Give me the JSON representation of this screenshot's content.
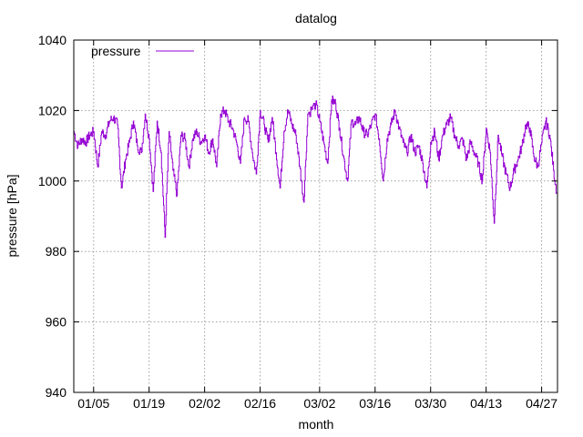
{
  "chart_data": {
    "type": "line",
    "title": "datalog",
    "xlabel": "month",
    "ylabel": "pressure [hPa]",
    "ylim": [
      940,
      1040
    ],
    "yticks": [
      940,
      960,
      980,
      1000,
      1020,
      1040
    ],
    "xlim": [
      "12/31",
      "05/01"
    ],
    "xtick_labels": [
      "01/05",
      "01/19",
      "02/02",
      "02/16",
      "03/02",
      "03/16",
      "03/30",
      "04/13",
      "04/27"
    ],
    "grid": true,
    "legend_position": "top-left",
    "series": [
      {
        "name": "pressure",
        "color": "#9400d3",
        "x": [
          "12/31",
          "01/01",
          "01/02",
          "01/03",
          "01/04",
          "01/05",
          "01/06",
          "01/07",
          "01/08",
          "01/09",
          "01/10",
          "01/11",
          "01/12",
          "01/13",
          "01/14",
          "01/15",
          "01/16",
          "01/17",
          "01/18",
          "01/19",
          "01/20",
          "01/21",
          "01/22",
          "01/23",
          "01/24",
          "01/25",
          "01/26",
          "01/27",
          "01/28",
          "01/29",
          "01/30",
          "01/31",
          "02/01",
          "02/02",
          "02/03",
          "02/04",
          "02/05",
          "02/06",
          "02/07",
          "02/08",
          "02/09",
          "02/10",
          "02/11",
          "02/12",
          "02/13",
          "02/14",
          "02/15",
          "02/16",
          "02/17",
          "02/18",
          "02/19",
          "02/20",
          "02/21",
          "02/22",
          "02/23",
          "02/24",
          "02/25",
          "02/26",
          "02/27",
          "02/28",
          "03/01",
          "03/02",
          "03/03",
          "03/04",
          "03/05",
          "03/06",
          "03/07",
          "03/08",
          "03/09",
          "03/10",
          "03/11",
          "03/12",
          "03/13",
          "03/14",
          "03/15",
          "03/16",
          "03/17",
          "03/18",
          "03/19",
          "03/20",
          "03/21",
          "03/22",
          "03/23",
          "03/24",
          "03/25",
          "03/26",
          "03/27",
          "03/28",
          "03/29",
          "03/30",
          "03/31",
          "04/01",
          "04/02",
          "04/03",
          "04/04",
          "04/05",
          "04/06",
          "04/07",
          "04/08",
          "04/09",
          "04/10",
          "04/11",
          "04/12",
          "04/13",
          "04/14",
          "04/15",
          "04/16",
          "04/17",
          "04/18",
          "04/19",
          "04/20",
          "04/21",
          "04/22",
          "04/23",
          "04/24",
          "04/25",
          "04/26",
          "04/27",
          "04/28",
          "04/29",
          "04/30",
          "05/01"
        ],
        "values": [
          1014,
          1010,
          1012,
          1011,
          1013,
          1014,
          1004,
          1014,
          1013,
          1017,
          1018,
          1016,
          998,
          1006,
          1011,
          1017,
          1010,
          1008,
          1019,
          1012,
          997,
          1017,
          1008,
          984,
          1014,
          1003,
          996,
          1013,
          1012,
          1004,
          1012,
          1014,
          1011,
          1013,
          1008,
          1012,
          1004,
          1019,
          1020,
          1017,
          1015,
          1011,
          1005,
          1018,
          1017,
          1008,
          1002,
          1020,
          1016,
          1011,
          1018,
          1008,
          998,
          1014,
          1020,
          1016,
          1013,
          1004,
          994,
          1019,
          1022,
          1017,
          1011,
          1005,
          1023,
          1022,
          1015,
          1007,
          1000,
          1017,
          1016,
          1018,
          1014,
          1013,
          1016,
          1019,
          1012,
          1000,
          1012,
          1016,
          1020,
          1015,
          1011,
          1008,
          1013,
          1008,
          1010,
          1005,
          998,
          1011,
          1014,
          1006,
          1013,
          1016,
          1018,
          1013,
          1010,
          1012,
          1006,
          1011,
          1008,
          1005,
          1000,
          1015,
          1008,
          988,
          1013,
          1007,
          1002,
          998,
          1003,
          1006,
          1010,
          1016,
          1015,
          1007,
          1004,
          1011,
          1017,
          1013,
          1003,
          995
        ]
      }
    ]
  }
}
